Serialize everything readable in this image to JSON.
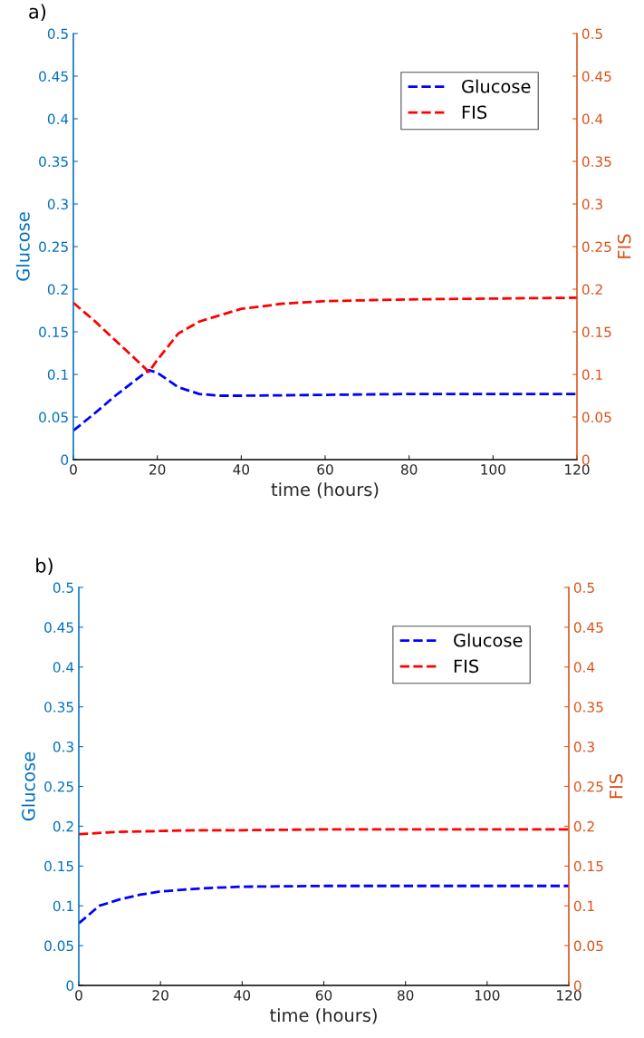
{
  "chart_data": [
    {
      "type": "line",
      "title": "a)",
      "xlabel": "time (hours)",
      "ylabel": "Glucose",
      "y2label": "FIS",
      "xlim": [
        0,
        120
      ],
      "xticks": [
        0,
        20,
        40,
        60,
        80,
        100,
        120
      ],
      "ylim": [
        0,
        0.5
      ],
      "yticks": [
        0,
        0.05,
        0.1,
        0.15,
        0.2,
        0.25,
        0.3,
        0.35,
        0.4,
        0.45,
        0.5
      ],
      "y2lim": [
        0,
        0.5
      ],
      "y2ticks": [
        0,
        0.05,
        0.1,
        0.15,
        0.2,
        0.25,
        0.3,
        0.35,
        0.4,
        0.45,
        0.5
      ],
      "legend": "top right",
      "line_style": "dashed",
      "grid": false,
      "series": [
        {
          "name": "Glucose",
          "color": "#0000ff",
          "x": [
            0,
            5,
            10,
            15,
            18,
            20,
            25,
            30,
            35,
            40,
            60,
            80,
            100,
            120
          ],
          "values": [
            0.034,
            0.054,
            0.075,
            0.094,
            0.105,
            0.102,
            0.085,
            0.077,
            0.075,
            0.075,
            0.076,
            0.077,
            0.077,
            0.077
          ]
        },
        {
          "name": "FIS",
          "color": "#ff0000",
          "axis": "y2",
          "x": [
            0,
            5,
            10,
            15,
            18,
            20,
            25,
            30,
            40,
            50,
            60,
            80,
            100,
            120
          ],
          "values": [
            0.184,
            0.163,
            0.14,
            0.117,
            0.103,
            0.117,
            0.148,
            0.162,
            0.177,
            0.183,
            0.186,
            0.188,
            0.189,
            0.19
          ]
        }
      ]
    },
    {
      "type": "line",
      "title": "b)",
      "xlabel": "time (hours)",
      "ylabel": "Glucose",
      "y2label": "FIS",
      "xlim": [
        0,
        120
      ],
      "xticks": [
        0,
        20,
        40,
        60,
        80,
        100,
        120
      ],
      "ylim": [
        0,
        0.5
      ],
      "yticks": [
        0,
        0.05,
        0.1,
        0.15,
        0.2,
        0.25,
        0.3,
        0.35,
        0.4,
        0.45,
        0.5
      ],
      "y2lim": [
        0,
        0.5
      ],
      "y2ticks": [
        0,
        0.05,
        0.1,
        0.15,
        0.2,
        0.25,
        0.3,
        0.35,
        0.4,
        0.45,
        0.5
      ],
      "legend": "top right",
      "line_style": "dashed",
      "grid": false,
      "series": [
        {
          "name": "Glucose",
          "color": "#0000ff",
          "x": [
            0,
            5,
            10,
            15,
            20,
            25,
            30,
            40,
            60,
            80,
            100,
            120
          ],
          "values": [
            0.078,
            0.1,
            0.108,
            0.114,
            0.118,
            0.12,
            0.122,
            0.124,
            0.125,
            0.125,
            0.125,
            0.125
          ]
        },
        {
          "name": "FIS",
          "color": "#ff0000",
          "axis": "y2",
          "x": [
            0,
            10,
            20,
            30,
            40,
            60,
            80,
            100,
            120
          ],
          "values": [
            0.19,
            0.193,
            0.194,
            0.195,
            0.195,
            0.196,
            0.196,
            0.196,
            0.196
          ]
        }
      ]
    }
  ]
}
